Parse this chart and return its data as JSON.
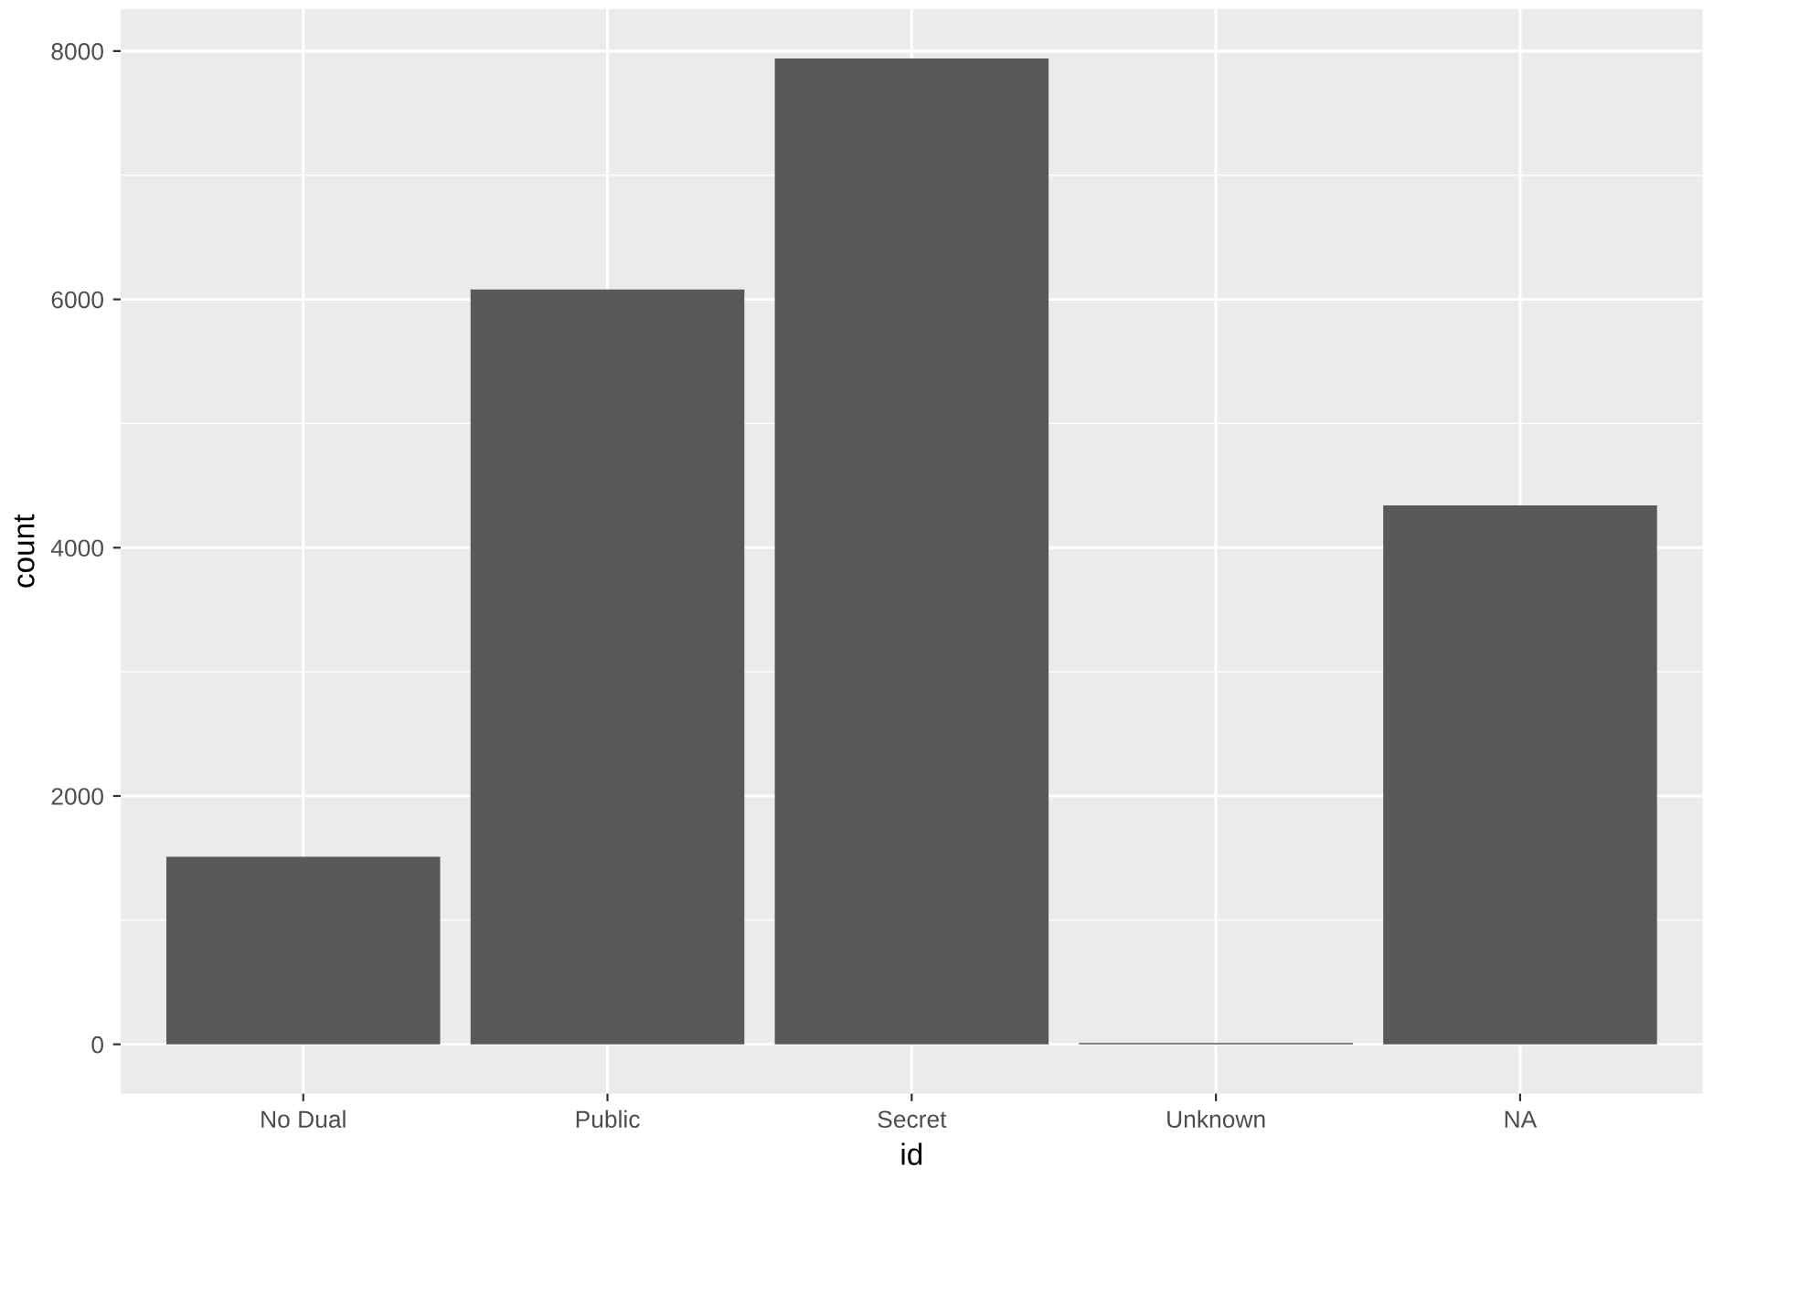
{
  "chart_data": {
    "type": "bar",
    "xlabel": "id",
    "ylabel": "count",
    "categories": [
      "No Dual",
      "Public",
      "Secret",
      "Unknown",
      "NA"
    ],
    "values": [
      1510,
      6080,
      7940,
      10,
      4340
    ],
    "color": "#595959",
    "ylim": [
      -397,
      8337
    ],
    "yticks": [
      0,
      2000,
      4000,
      6000,
      8000
    ],
    "grid": true
  }
}
